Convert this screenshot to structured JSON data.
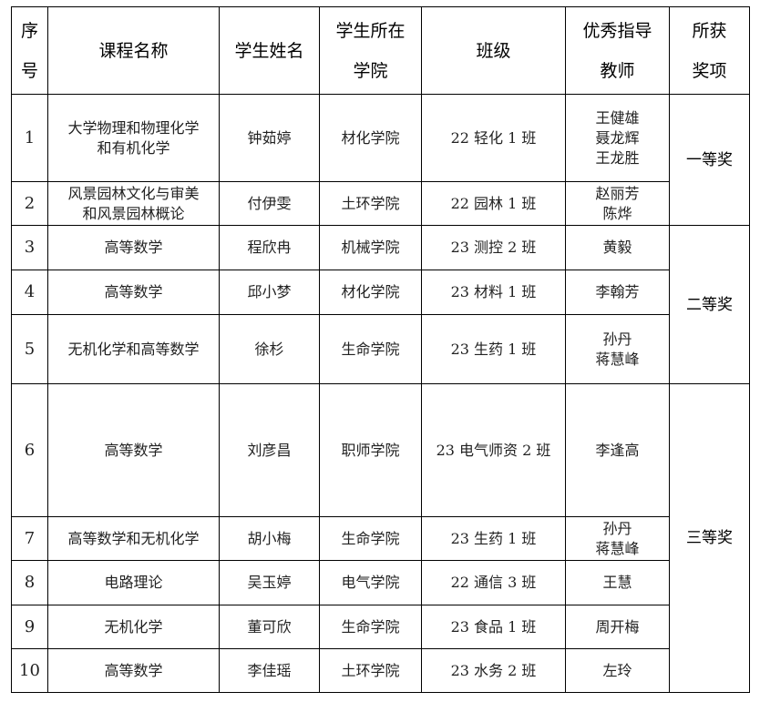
{
  "headers": {
    "seq": "序\n号",
    "course": "课程名称",
    "student": "学生姓名",
    "college": "学生所在\n学院",
    "class": "班级",
    "teacher": "优秀指导\n教师",
    "award": "所获\n奖项"
  },
  "rows": [
    {
      "seq": "1",
      "course": "大学物理和物理化学\n和有机化学",
      "student": "钟茹婷",
      "college": "材化学院",
      "class": "22 轻化 1 班",
      "teacher": "王健雄\n聂龙辉\n王龙胜"
    },
    {
      "seq": "2",
      "course": "风景园林文化与审美\n和风景园林概论",
      "student": "付伊雯",
      "college": "土环学院",
      "class": "22 园林 1 班",
      "teacher": "赵丽芳\n陈烨"
    },
    {
      "seq": "3",
      "course": "高等数学",
      "student": "程欣冉",
      "college": "机械学院",
      "class": "23 测控 2 班",
      "teacher": "黄毅"
    },
    {
      "seq": "4",
      "course": "高等数学",
      "student": "邱小梦",
      "college": "材化学院",
      "class": "23 材料 1 班",
      "teacher": "李翰芳"
    },
    {
      "seq": "5",
      "course": "无机化学和高等数学",
      "student": "徐杉",
      "college": "生命学院",
      "class": "23 生药 1 班",
      "teacher": "孙丹\n蒋慧峰"
    },
    {
      "seq": "6",
      "course": "高等数学",
      "student": "刘彦昌",
      "college": "职师学院",
      "class": "23 电气师资 2 班",
      "teacher": "李逢高"
    },
    {
      "seq": "7",
      "course": "高等数学和无机化学",
      "student": "胡小梅",
      "college": "生命学院",
      "class": "23 生药 1 班",
      "teacher": "孙丹\n蒋慧峰"
    },
    {
      "seq": "8",
      "course": "电路理论",
      "student": "吴玉婷",
      "college": "电气学院",
      "class": "22 通信 3 班",
      "teacher": "王慧"
    },
    {
      "seq": "9",
      "course": "无机化学",
      "student": "董可欣",
      "college": "生命学院",
      "class": "23 食品 1 班",
      "teacher": "周开梅"
    },
    {
      "seq": "10",
      "course": "高等数学",
      "student": "李佳瑶",
      "college": "土环学院",
      "class": "23 水务 2 班",
      "teacher": "左玲"
    }
  ],
  "awards": [
    "一等奖",
    "二等奖",
    "三等奖"
  ]
}
